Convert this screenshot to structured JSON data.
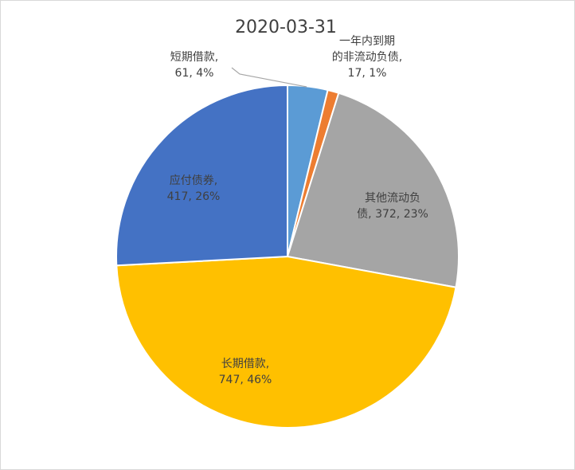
{
  "chart_data": {
    "type": "pie",
    "title": "2020-03-31",
    "slices": [
      {
        "name": "短期借款",
        "value": 61,
        "percent": "4%",
        "color": "#5B9BD5",
        "label_lines": [
          "短期借款,",
          "61, 4%"
        ]
      },
      {
        "name": "一年内到期的非流动负债",
        "value": 17,
        "percent": "1%",
        "color": "#ED7D31",
        "label_lines": [
          "一年内到期",
          "的非流动负债,",
          "17, 1%"
        ]
      },
      {
        "name": "其他流动负债",
        "value": 372,
        "percent": "23%",
        "color": "#A5A5A5",
        "label_lines": [
          "其他流动负",
          "债, 372, 23%"
        ]
      },
      {
        "name": "长期借款",
        "value": 747,
        "percent": "46%",
        "color": "#FFC000",
        "label_lines": [
          "长期借款,",
          "747, 46%"
        ]
      },
      {
        "name": "应付债券",
        "value": 417,
        "percent": "26%",
        "color": "#4472C4",
        "label_lines": [
          "应付债券,",
          "417, 26%"
        ]
      }
    ]
  }
}
